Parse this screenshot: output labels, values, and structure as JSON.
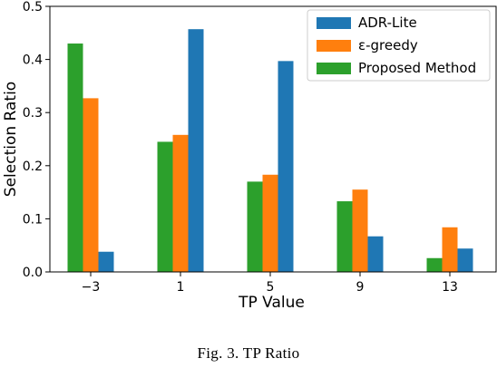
{
  "caption": "Fig. 3.   TP Ratio",
  "chart_data": {
    "type": "bar",
    "categories": [
      "−3",
      "1",
      "5",
      "9",
      "13"
    ],
    "series": [
      {
        "name": "Proposed Method",
        "color": "#2ca02c",
        "values": [
          0.43,
          0.245,
          0.17,
          0.133,
          0.026
        ]
      },
      {
        "name": "ε-greedy",
        "color": "#ff7f0e",
        "values": [
          0.327,
          0.258,
          0.183,
          0.155,
          0.084
        ]
      },
      {
        "name": "ADR-Lite",
        "color": "#1f77b4",
        "values": [
          0.038,
          0.457,
          0.397,
          0.067,
          0.044
        ]
      }
    ],
    "legend_order": [
      "ADR-Lite",
      "ε-greedy",
      "Proposed Method"
    ],
    "legend_position": "top-right",
    "xlabel": "TP Value",
    "ylabel": "Selection Ratio",
    "ylim": [
      0,
      0.5
    ],
    "yticks": [
      "0.0",
      "0.1",
      "0.2",
      "0.3",
      "0.4",
      "0.5"
    ],
    "grid": false
  }
}
